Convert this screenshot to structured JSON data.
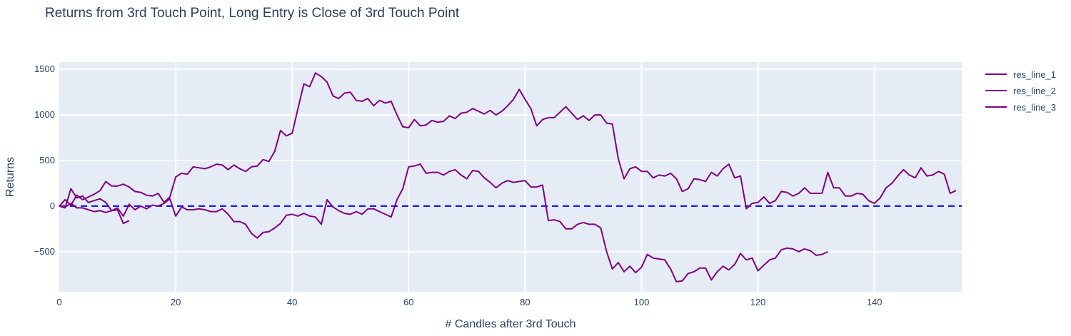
{
  "chart_data": {
    "type": "line",
    "title": "Returns from 3rd Touch Point, Long Entry is Close of 3rd Touch Point",
    "xlabel": "# Candles after 3rd Touch",
    "ylabel": "Returns",
    "xlim": [
      0,
      155
    ],
    "ylim": [
      -940,
      1580
    ],
    "x_ticks": [
      0,
      20,
      40,
      60,
      80,
      100,
      120,
      140
    ],
    "y_ticks": [
      -500,
      0,
      500,
      1000,
      1500
    ],
    "y_tick_labels": [
      "−500",
      "0",
      "500",
      "1000",
      "1500"
    ],
    "grid": true,
    "legend_position": "right",
    "background_color": "#e5ecf6",
    "line_color": "#800080",
    "reference_line": {
      "y": 0,
      "color": "#0000ff",
      "style": "dashed"
    },
    "series": [
      {
        "name": "res_line_1",
        "x_start": 0,
        "values": [
          0,
          70,
          10,
          120,
          70,
          100,
          130,
          170,
          270,
          220,
          220,
          240,
          210,
          160,
          150,
          120,
          110,
          140,
          40,
          100,
          320,
          360,
          350,
          430,
          420,
          410,
          430,
          460,
          450,
          400,
          450,
          410,
          380,
          430,
          440,
          510,
          490,
          600,
          830,
          770,
          800,
          1070,
          1340,
          1310,
          1460,
          1420,
          1360,
          1210,
          1180,
          1240,
          1250,
          1160,
          1150,
          1180,
          1100,
          1160,
          1130,
          1150,
          1000,
          870,
          860,
          950,
          880,
          890,
          940,
          920,
          930,
          990,
          960,
          1020,
          1030,
          1070,
          1040,
          1010,
          1050,
          1000,
          1040,
          1100,
          1170,
          1280,
          1170,
          1070,
          880,
          950,
          970,
          970,
          1030,
          1090,
          1020,
          950,
          990,
          940,
          1000,
          1000,
          910,
          900,
          520,
          300,
          410,
          430,
          380,
          380,
          310,
          340,
          330,
          360,
          300,
          160,
          190,
          300,
          290,
          270,
          370,
          330,
          410,
          460,
          310,
          330,
          -30,
          30,
          40,
          100,
          30,
          60,
          160,
          150,
          110,
          140,
          200,
          140,
          140,
          140,
          370,
          200,
          200,
          110,
          110,
          140,
          130,
          60,
          30,
          90,
          200,
          250,
          330,
          400,
          340,
          310,
          420,
          330,
          340,
          380,
          350,
          140,
          170
        ]
      },
      {
        "name": "res_line_2",
        "x_start": 0,
        "values": [
          0,
          -20,
          190,
          90,
          110,
          40,
          60,
          80,
          40,
          -50,
          -20,
          -110,
          20,
          -40,
          0,
          -30,
          10,
          0,
          30,
          80,
          -110,
          -10,
          -40,
          -40,
          -30,
          -40,
          -60,
          -60,
          -30,
          -90,
          -170,
          -170,
          -200,
          -300,
          -350,
          -290,
          -280,
          -240,
          -190,
          -100,
          -90,
          -110,
          -80,
          -110,
          -120,
          -200,
          70,
          -10,
          -50,
          -80,
          -90,
          -60,
          -90,
          -30,
          -30,
          -60,
          -90,
          -120,
          70,
          190,
          430,
          440,
          460,
          360,
          370,
          370,
          340,
          380,
          400,
          340,
          300,
          390,
          380,
          310,
          260,
          200,
          250,
          280,
          260,
          270,
          280,
          210,
          210,
          230,
          -160,
          -150,
          -170,
          -250,
          -250,
          -200,
          -180,
          -200,
          -200,
          -240,
          -500,
          -690,
          -620,
          -720,
          -660,
          -730,
          -670,
          -530,
          -570,
          -580,
          -590,
          -690,
          -830,
          -820,
          -740,
          -720,
          -680,
          -680,
          -810,
          -720,
          -660,
          -700,
          -640,
          -520,
          -590,
          -570,
          -710,
          -650,
          -590,
          -570,
          -480,
          -460,
          -470,
          -500,
          -470,
          -490,
          -540,
          -530,
          -500
        ]
      },
      {
        "name": "res_line_3",
        "x_start": 0,
        "values": [
          0,
          -10,
          30,
          -20,
          -20,
          -40,
          -60,
          -50,
          -70,
          -50,
          -40,
          -190,
          -160
        ]
      }
    ]
  }
}
